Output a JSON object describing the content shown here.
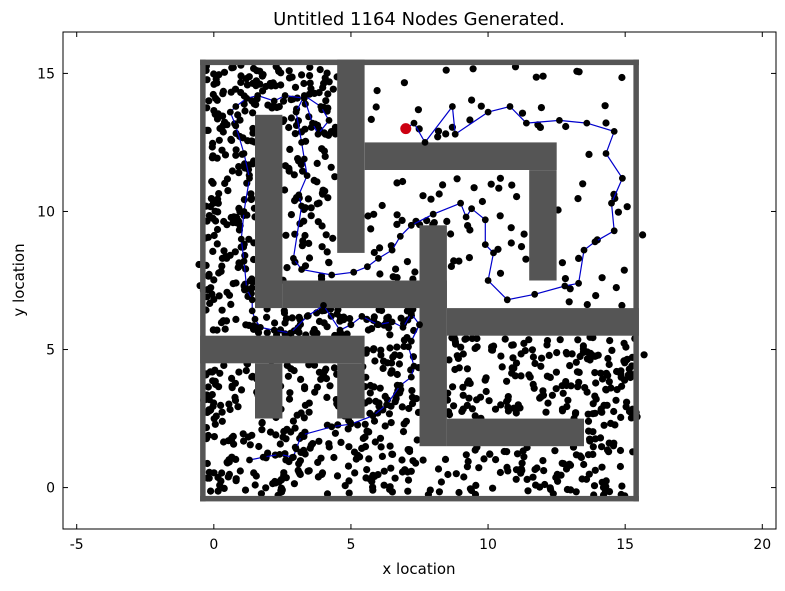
{
  "chart_data": {
    "type": "scatter",
    "title": "Untitled 1164 Nodes Generated.",
    "xlabel": "x location",
    "ylabel": "y location",
    "xlim": [
      -5.5,
      20.5
    ],
    "ylim": [
      -1.5,
      16.5
    ],
    "xticks": [
      -5,
      0,
      5,
      10,
      15,
      20
    ],
    "yticks": [
      0,
      5,
      10,
      15
    ],
    "grid": false,
    "colors": {
      "nodes": "#000000",
      "walls": "#555555",
      "path": "#0000cc",
      "start": "#cc0011"
    },
    "node_count": 1164,
    "walls": [
      {
        "x0": -0.5,
        "x1": 15.5,
        "y0": 15.3,
        "y1": 15.5
      },
      {
        "x0": -0.5,
        "x1": 15.5,
        "y0": -0.5,
        "y1": -0.3
      },
      {
        "x0": -0.5,
        "x1": -0.3,
        "y0": -0.5,
        "y1": 15.5
      },
      {
        "x0": 15.3,
        "x1": 15.5,
        "y0": -0.5,
        "y1": 15.5
      },
      {
        "x0": 4.5,
        "x1": 5.5,
        "y0": 8.5,
        "y1": 15.5
      },
      {
        "x0": 5.5,
        "x1": 12.5,
        "y0": 11.5,
        "y1": 12.5
      },
      {
        "x0": 11.5,
        "x1": 12.5,
        "y0": 7.5,
        "y1": 11.5
      },
      {
        "x0": 1.5,
        "x1": 2.5,
        "y0": 6.5,
        "y1": 13.5
      },
      {
        "x0": 2.5,
        "x1": 8.5,
        "y0": 6.5,
        "y1": 7.5
      },
      {
        "x0": 7.5,
        "x1": 8.5,
        "y0": 1.5,
        "y1": 9.5
      },
      {
        "x0": 8.5,
        "x1": 15.5,
        "y0": 5.5,
        "y1": 6.5
      },
      {
        "x0": 8.5,
        "x1": 13.5,
        "y0": 1.5,
        "y1": 2.5
      },
      {
        "x0": -0.5,
        "x1": 5.5,
        "y0": 4.5,
        "y1": 5.5
      },
      {
        "x0": 1.5,
        "x1": 2.5,
        "y0": 2.5,
        "y1": 4.5
      },
      {
        "x0": 4.5,
        "x1": 5.5,
        "y0": 2.5,
        "y1": 4.5
      }
    ],
    "start_point": {
      "x": 7.0,
      "y": 13.0
    },
    "path": [
      [
        7.0,
        13.0
      ],
      [
        7.3,
        13.2
      ],
      [
        7.7,
        12.5
      ],
      [
        8.7,
        13.8
      ],
      [
        8.8,
        12.8
      ],
      [
        10.0,
        13.6
      ],
      [
        10.8,
        13.8
      ],
      [
        11.4,
        13.2
      ],
      [
        12.6,
        13.3
      ],
      [
        13.6,
        13.2
      ],
      [
        14.6,
        12.9
      ],
      [
        14.3,
        12.1
      ],
      [
        14.9,
        11.2
      ],
      [
        14.5,
        10.3
      ],
      [
        14.6,
        9.3
      ],
      [
        13.9,
        8.9
      ],
      [
        13.5,
        8.6
      ],
      [
        13.3,
        7.4
      ],
      [
        12.8,
        7.3
      ],
      [
        11.7,
        7.0
      ],
      [
        10.7,
        6.8
      ],
      [
        10.0,
        7.5
      ],
      [
        10.2,
        8.5
      ],
      [
        9.9,
        8.8
      ],
      [
        9.9,
        9.7
      ],
      [
        9.4,
        10.1
      ],
      [
        9.2,
        9.8
      ],
      [
        9.0,
        10.3
      ],
      [
        8.0,
        9.9
      ],
      [
        7.2,
        9.5
      ],
      [
        6.8,
        9.1
      ],
      [
        6.5,
        8.6
      ],
      [
        6.0,
        8.3
      ],
      [
        5.6,
        8.0
      ],
      [
        5.1,
        7.8
      ],
      [
        4.3,
        7.7
      ],
      [
        3.2,
        7.9
      ],
      [
        2.9,
        8.3
      ],
      [
        3.2,
        10.2
      ],
      [
        3.1,
        10.6
      ],
      [
        3.4,
        11.3
      ],
      [
        3.3,
        11.9
      ],
      [
        3.2,
        12.5
      ],
      [
        3.0,
        13.6
      ],
      [
        3.3,
        14.2
      ],
      [
        3.9,
        13.8
      ],
      [
        4.2,
        13.3
      ],
      [
        3.8,
        12.8
      ],
      [
        3.6,
        13.2
      ],
      [
        3.3,
        14.1
      ],
      [
        2.6,
        14.2
      ],
      [
        2.2,
        14.0
      ],
      [
        1.6,
        14.2
      ],
      [
        1.2,
        14.1
      ],
      [
        0.8,
        13.8
      ],
      [
        0.6,
        13.6
      ],
      [
        0.8,
        13.1
      ],
      [
        1.1,
        12.1
      ],
      [
        1.3,
        11.2
      ],
      [
        1.1,
        10.0
      ],
      [
        1.0,
        9.0
      ],
      [
        1.1,
        8.2
      ],
      [
        1.2,
        7.2
      ],
      [
        1.4,
        6.8
      ],
      [
        1.4,
        6.4
      ],
      [
        1.5,
        6.1
      ],
      [
        1.7,
        5.8
      ],
      [
        2.2,
        5.7
      ],
      [
        2.8,
        5.6
      ],
      [
        3.4,
        6.2
      ],
      [
        4.0,
        6.6
      ],
      [
        4.6,
        5.7
      ],
      [
        5.0,
        5.9
      ],
      [
        5.4,
        6.2
      ],
      [
        6.0,
        5.9
      ],
      [
        6.5,
        6.0
      ],
      [
        6.9,
        5.8
      ],
      [
        7.2,
        6.3
      ],
      [
        7.5,
        5.9
      ],
      [
        7.2,
        5.3
      ],
      [
        7.1,
        5.1
      ],
      [
        7.3,
        4.4
      ],
      [
        7.2,
        4.0
      ],
      [
        6.8,
        3.7
      ],
      [
        6.3,
        3.0
      ],
      [
        5.8,
        2.6
      ],
      [
        5.0,
        2.3
      ],
      [
        4.3,
        2.2
      ],
      [
        3.2,
        1.9
      ],
      [
        3.0,
        1.4
      ],
      [
        2.9,
        1.1
      ],
      [
        2.4,
        1.2
      ],
      [
        1.8,
        1.1
      ],
      [
        1.3,
        1.0
      ]
    ],
    "node_regions": [
      {
        "x0": -0.3,
        "x1": 1.5,
        "y0": 6.5,
        "y1": 15.3,
        "n": 175
      },
      {
        "x0": 1.5,
        "x1": 4.5,
        "y0": 13.5,
        "y1": 15.3,
        "n": 58
      },
      {
        "x0": 2.5,
        "x1": 4.5,
        "y0": 7.5,
        "y1": 13.5,
        "n": 80
      },
      {
        "x0": 5.5,
        "x1": 7.5,
        "y0": 7.5,
        "y1": 11.5,
        "n": 20
      },
      {
        "x0": 7.5,
        "x1": 11.5,
        "y0": 9.5,
        "y1": 11.5,
        "n": 18
      },
      {
        "x0": 5.5,
        "x1": 15.3,
        "y0": 12.5,
        "y1": 15.3,
        "n": 28
      },
      {
        "x0": 12.5,
        "x1": 15.3,
        "y0": 6.5,
        "y1": 12.5,
        "n": 20
      },
      {
        "x0": 8.5,
        "x1": 11.5,
        "y0": 6.5,
        "y1": 9.5,
        "n": 14
      },
      {
        "x0": -0.3,
        "x1": 7.5,
        "y0": 5.5,
        "y1": 6.5,
        "n": 80
      },
      {
        "x0": -0.3,
        "x1": 7.5,
        "y0": -0.3,
        "y1": 4.5,
        "n": 334
      },
      {
        "x0": 5.5,
        "x1": 7.5,
        "y0": 4.5,
        "y1": 5.5,
        "n": 20
      },
      {
        "x0": 7.5,
        "x1": 15.3,
        "y0": -0.3,
        "y1": 1.5,
        "n": 100
      },
      {
        "x0": 13.5,
        "x1": 15.3,
        "y0": 1.5,
        "y1": 2.5,
        "n": 14
      },
      {
        "x0": 8.5,
        "x1": 15.3,
        "y0": 2.5,
        "y1": 5.5,
        "n": 193
      },
      {
        "x0": 15.3,
        "x1": 15.7,
        "y0": 0.2,
        "y1": 10.0,
        "n": 5
      },
      {
        "x0": -0.7,
        "x1": -0.3,
        "y0": 2.5,
        "y1": 12.0,
        "n": 5
      }
    ]
  }
}
